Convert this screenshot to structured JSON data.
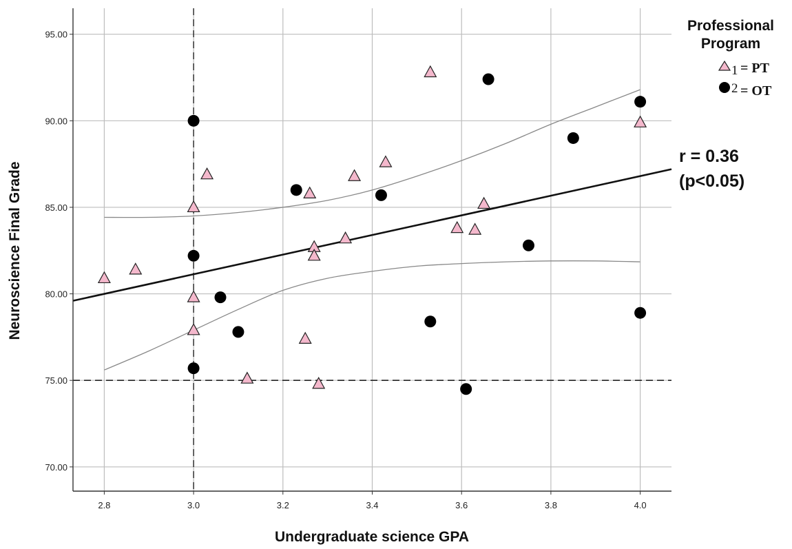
{
  "chart_data": {
    "type": "scatter",
    "xlabel": "Undergraduate science GPA",
    "ylabel": "Neuroscience Final Grade",
    "xlim": [
      2.73,
      4.07
    ],
    "ylim": [
      68.6,
      96.5
    ],
    "x_ticks": [
      "2.8",
      "3.0",
      "3.2",
      "3.4",
      "3.6",
      "3.8",
      "4.0"
    ],
    "y_ticks": [
      "70.00",
      "75.00",
      "80.00",
      "85.00",
      "90.00",
      "95.00"
    ],
    "grid": true,
    "legend": {
      "title_line1": "Professional",
      "title_line2": "Program",
      "placement": "top-right",
      "entries": [
        {
          "code": "1",
          "label": "= PT",
          "marker": "triangle"
        },
        {
          "code": "2",
          "label": "= OT",
          "marker": "circle"
        }
      ]
    },
    "colors": {
      "pt": "#f4b8cc",
      "ot": "#000000",
      "fit": "#111111",
      "ci": "#888888",
      "grid": "#bdbdbd"
    },
    "series": [
      {
        "name": "1 = PT",
        "marker": "triangle",
        "points": [
          [
            2.8,
            80.9
          ],
          [
            2.87,
            81.4
          ],
          [
            3.0,
            85.0
          ],
          [
            3.0,
            79.8
          ],
          [
            3.0,
            77.9
          ],
          [
            3.03,
            86.9
          ],
          [
            3.12,
            75.1
          ],
          [
            3.25,
            77.4
          ],
          [
            3.26,
            85.8
          ],
          [
            3.27,
            82.7
          ],
          [
            3.27,
            82.2
          ],
          [
            3.28,
            74.8
          ],
          [
            3.34,
            83.2
          ],
          [
            3.36,
            86.8
          ],
          [
            3.43,
            87.6
          ],
          [
            3.53,
            92.8
          ],
          [
            3.59,
            83.8
          ],
          [
            3.63,
            83.7
          ],
          [
            3.65,
            85.2
          ],
          [
            4.0,
            89.9
          ]
        ]
      },
      {
        "name": "2 = OT",
        "marker": "circle",
        "points": [
          [
            3.0,
            90.0
          ],
          [
            3.0,
            82.2
          ],
          [
            3.0,
            75.7
          ],
          [
            3.06,
            79.8
          ],
          [
            3.1,
            77.8
          ],
          [
            3.23,
            86.0
          ],
          [
            3.42,
            85.7
          ],
          [
            3.53,
            78.4
          ],
          [
            3.61,
            74.5
          ],
          [
            3.66,
            92.4
          ],
          [
            3.75,
            82.8
          ],
          [
            3.85,
            89.0
          ],
          [
            4.0,
            91.1
          ],
          [
            4.0,
            78.9
          ]
        ]
      }
    ],
    "fit_line": {
      "x": [
        2.73,
        4.07
      ],
      "y": [
        79.6,
        87.2
      ]
    },
    "ci_upper": {
      "x": [
        2.8,
        2.9,
        3.0,
        3.1,
        3.2,
        3.3,
        3.4,
        3.5,
        3.6,
        3.7,
        3.8,
        3.9,
        4.0
      ],
      "y": [
        84.42,
        84.42,
        84.5,
        84.7,
        85.0,
        85.4,
        86.0,
        86.8,
        87.7,
        88.7,
        89.8,
        90.8,
        91.8
      ]
    },
    "ci_lower": {
      "x": [
        2.8,
        2.9,
        3.0,
        3.1,
        3.2,
        3.3,
        3.4,
        3.5,
        3.6,
        3.7,
        3.8,
        3.9,
        4.0
      ],
      "y": [
        75.6,
        76.7,
        77.9,
        79.1,
        80.2,
        80.9,
        81.3,
        81.6,
        81.75,
        81.85,
        81.9,
        81.9,
        81.85
      ]
    },
    "ref_lines": {
      "vertical_x": 3.0,
      "horizontal_y": 75.0
    },
    "annotation": {
      "line1": "r = 0.36",
      "line2": "(p<0.05)"
    }
  }
}
